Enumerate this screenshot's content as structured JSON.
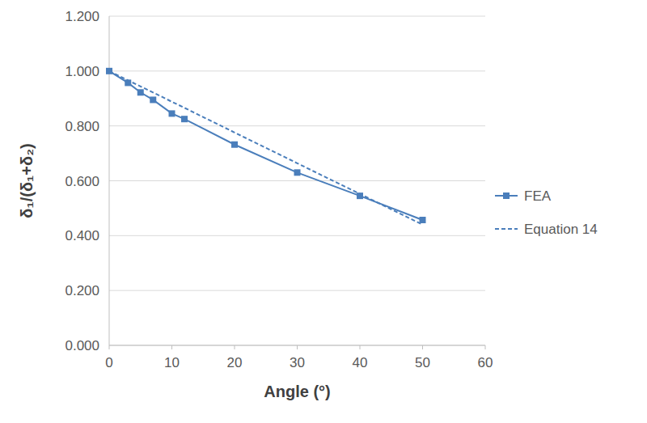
{
  "chart_data": {
    "type": "line",
    "x_label": "Angle (°)",
    "y_label": "δ₁/(δ₁+δ₂)",
    "x": [
      0,
      3,
      5,
      7,
      10,
      12,
      20,
      30,
      40,
      50
    ],
    "series": [
      {
        "name": "FEA",
        "color": "#4a7ebb",
        "marker": "square",
        "line_style": "solid",
        "values": [
          1.0,
          0.957,
          0.922,
          0.895,
          0.845,
          0.825,
          0.732,
          0.63,
          0.545,
          0.457
        ]
      },
      {
        "name": "Equation 14",
        "color": "#4a7ebb",
        "marker": "none",
        "line_style": "dashed",
        "values": [
          1.0,
          0.966,
          0.944,
          0.922,
          0.888,
          0.866,
          0.776,
          0.664,
          0.552,
          0.44
        ]
      }
    ],
    "xlim": [
      0,
      60
    ],
    "xticks": [
      0,
      10,
      20,
      30,
      40,
      50,
      60
    ],
    "ylim": [
      0,
      1.2
    ],
    "yticks": [
      {
        "value": 0,
        "label": "0.000"
      },
      {
        "value": 0.2,
        "label": "0.200"
      },
      {
        "value": 0.4,
        "label": "0.400"
      },
      {
        "value": 0.6,
        "label": "0.600"
      },
      {
        "value": 0.8,
        "label": "0.800"
      },
      {
        "value": 1.0,
        "label": "1.000"
      },
      {
        "value": 1.2,
        "label": "1.200"
      }
    ],
    "grid": true,
    "legend": "right"
  }
}
